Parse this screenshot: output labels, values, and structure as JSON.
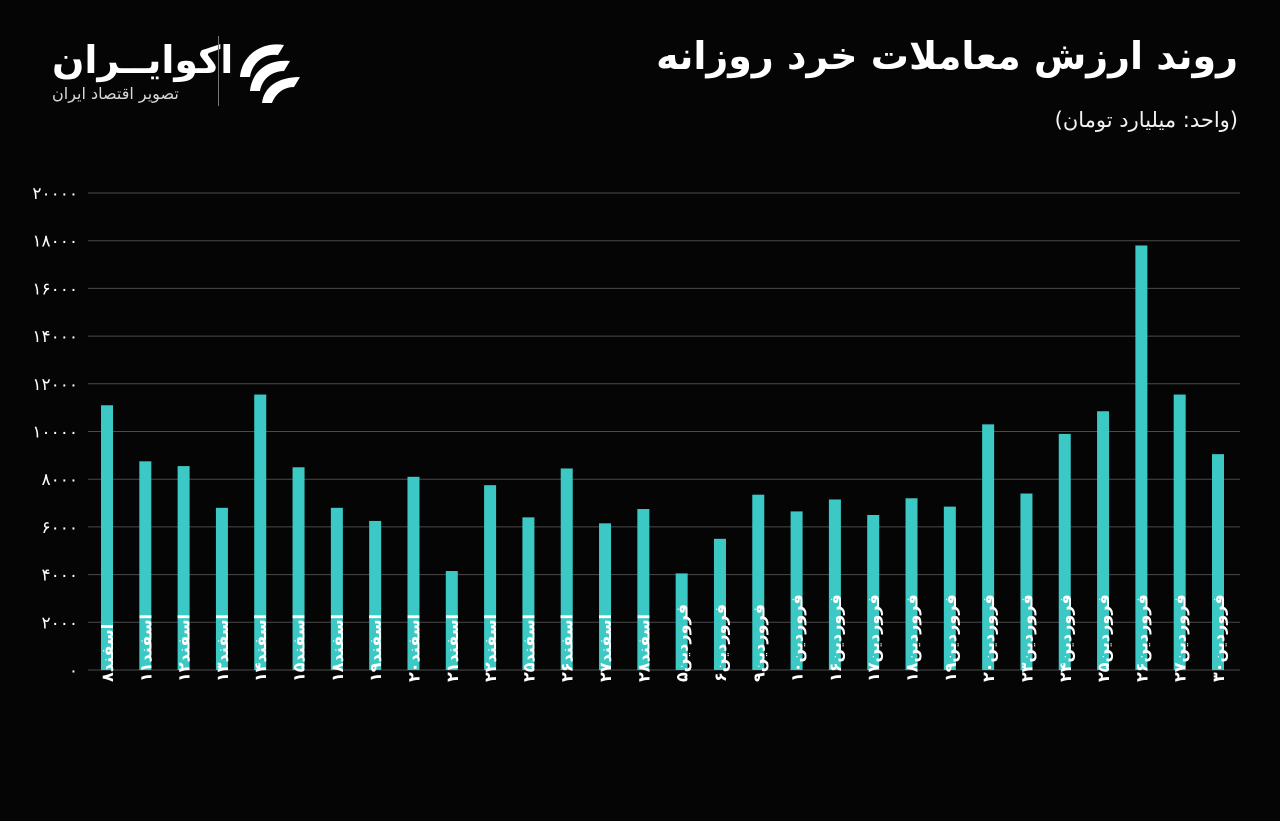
{
  "header": {
    "title": "روند ارزش معاملات خرد روزانه",
    "subtitle": "(واحد: میلیارد تومان)"
  },
  "brand": {
    "name": "اکوایــران",
    "tagline": "تصویر اقتصاد ایران",
    "logo_icon": "ecoiran-logo-icon"
  },
  "colors": {
    "background": "#050506",
    "bar": "#3cc9c5",
    "grid": "#4a4a4a",
    "text": "#ffffff"
  },
  "chart_data": {
    "type": "bar",
    "title": "روند ارزش معاملات خرد روزانه",
    "ylabel": "",
    "xlabel": "",
    "ylim": [
      0,
      20000
    ],
    "yticks": [
      0,
      2000,
      4000,
      6000,
      8000,
      10000,
      12000,
      14000,
      16000,
      18000,
      20000
    ],
    "ytick_labels": [
      "۰",
      "۲۰۰۰",
      "۴۰۰۰",
      "۶۰۰۰",
      "۸۰۰۰",
      "۱۰۰۰۰",
      "۱۲۰۰۰",
      "۱۴۰۰۰",
      "۱۶۰۰۰",
      "۱۸۰۰۰",
      "۲۰۰۰۰"
    ],
    "grid": true,
    "legend": "none",
    "categories": [
      "اسفند۸",
      "اسفند۱۱",
      "اسفند۱۲",
      "اسفند۱۳",
      "اسفند۱۴",
      "اسفند۱۵",
      "اسفند۱۸",
      "اسفند۱۹",
      "اسفند۲۰",
      "اسفند۲۱",
      "اسفند۲۲",
      "اسفند۲۵",
      "اسفند۲۶",
      "اسفند۲۷",
      "اسفند۲۸",
      "فروردین۵",
      "فروردین۶",
      "فروردین۹",
      "فروردین۱۰",
      "فروردین۱۶",
      "فروردین۱۷",
      "فروردین۱۸",
      "فروردین۱۹",
      "فروردین۲۰",
      "فروردین۲۳",
      "فروردین۲۴",
      "فروردین۲۵",
      "فروردین۲۶",
      "فروردین۲۷",
      "فروردین۳۰"
    ],
    "values": [
      11100,
      8750,
      8550,
      6800,
      11550,
      8500,
      6800,
      6250,
      8100,
      4150,
      7750,
      6400,
      8450,
      6150,
      6750,
      4050,
      5500,
      7350,
      6650,
      7150,
      6500,
      7200,
      6850,
      10300,
      7400,
      9900,
      10850,
      17800,
      11550,
      9050
    ]
  }
}
